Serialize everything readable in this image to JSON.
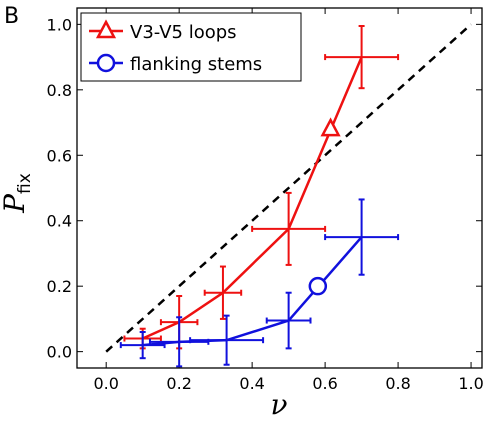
{
  "panel_label": "B",
  "chart_data": {
    "type": "line",
    "xlabel": "ν",
    "ylabel": "P",
    "ylabel_subscript": "fix",
    "xlim": [
      -0.08,
      1.03
    ],
    "ylim": [
      -0.05,
      1.05
    ],
    "x_ticks": [
      0.0,
      0.2,
      0.4,
      0.6,
      0.8,
      1.0
    ],
    "x_tick_labels": [
      "0.0",
      "0.2",
      "0.4",
      "0.6",
      "0.8",
      "1.0"
    ],
    "y_ticks": [
      0.0,
      0.2,
      0.4,
      0.6,
      0.8,
      1.0
    ],
    "y_tick_labels": [
      "0.0",
      "0.2",
      "0.4",
      "0.6",
      "0.8",
      "1.0"
    ],
    "grid": false,
    "legend_position": "top-left",
    "reference_line": {
      "style": "dashed",
      "color": "#000000",
      "x": [
        0.0,
        1.0
      ],
      "y": [
        0.0,
        1.0
      ]
    },
    "series": [
      {
        "name": "V3-V5 loops",
        "color": "#ee1111",
        "marker": "triangle",
        "x": [
          0.1,
          0.2,
          0.32,
          0.5,
          0.7
        ],
        "y": [
          0.04,
          0.09,
          0.18,
          0.375,
          0.9
        ],
        "x_err": [
          0.05,
          0.05,
          0.05,
          0.1,
          0.1
        ],
        "y_err": [
          0.03,
          0.08,
          0.08,
          0.11,
          0.095
        ],
        "highlight": {
          "x": 0.615,
          "y": 0.68
        }
      },
      {
        "name": "flanking stems",
        "color": "#1111dd",
        "marker": "circle",
        "x": [
          0.1,
          0.2,
          0.33,
          0.5,
          0.7
        ],
        "y": [
          0.02,
          0.03,
          0.035,
          0.095,
          0.35
        ],
        "x_err": [
          0.06,
          0.08,
          0.1,
          0.06,
          0.1
        ],
        "y_err": [
          0.04,
          0.075,
          0.075,
          0.085,
          0.115
        ],
        "highlight": {
          "x": 0.58,
          "y": 0.2
        }
      }
    ]
  }
}
